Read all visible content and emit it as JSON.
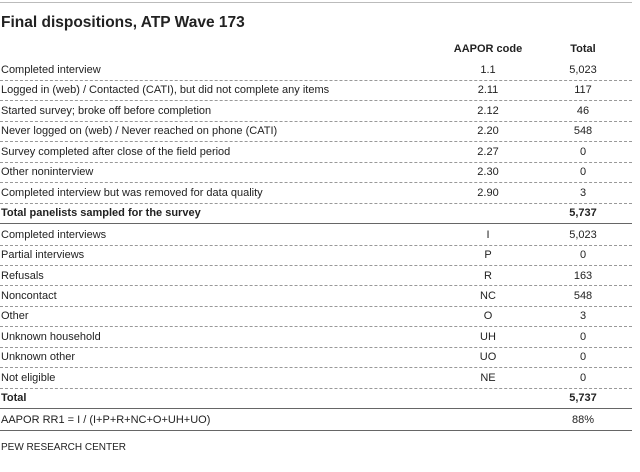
{
  "header": {
    "title": "Final dispositions, ATP Wave 173"
  },
  "columns": [
    "AAPOR code",
    "Total"
  ],
  "dispositions": {
    "rows": [
      [
        "Completed interview",
        "1.1",
        "5,023"
      ],
      [
        "Logged in (web) / Contacted (CATI), but did not complete any items",
        "2.11",
        "117"
      ],
      [
        "Started survey; broke off before completion",
        "2.12",
        "46"
      ],
      [
        "Never logged on (web) / Never reached on phone (CATI)",
        "2.20",
        "548"
      ],
      [
        "Survey completed after close of the field period",
        "2.27",
        "0"
      ],
      [
        "Other noninterview",
        "2.30",
        "0"
      ],
      [
        "Completed interview but was removed for data quality",
        "2.90",
        "3"
      ]
    ],
    "total": [
      "Total panelists sampled for the survey",
      "5,737"
    ]
  },
  "summary": {
    "rows": [
      [
        "Completed interviews",
        "I",
        "5,023"
      ],
      [
        "Partial interviews",
        "P",
        "0"
      ],
      [
        "Refusals",
        "R",
        "163"
      ],
      [
        "Noncontact",
        "NC",
        "548"
      ],
      [
        "Other",
        "O",
        "3"
      ],
      [
        "Unknown household",
        "UH",
        "0"
      ],
      [
        "Unknown other",
        "UO",
        "0"
      ],
      [
        "Not eligible",
        "NE",
        "0"
      ]
    ],
    "total": [
      "Total",
      "5,737"
    ]
  },
  "rate": [
    "AAPOR RR1 = I / (I+P+R+NC+O+UH+UO)",
    "88%"
  ],
  "footer": {
    "source": "PEW RESEARCH CENTER"
  }
}
